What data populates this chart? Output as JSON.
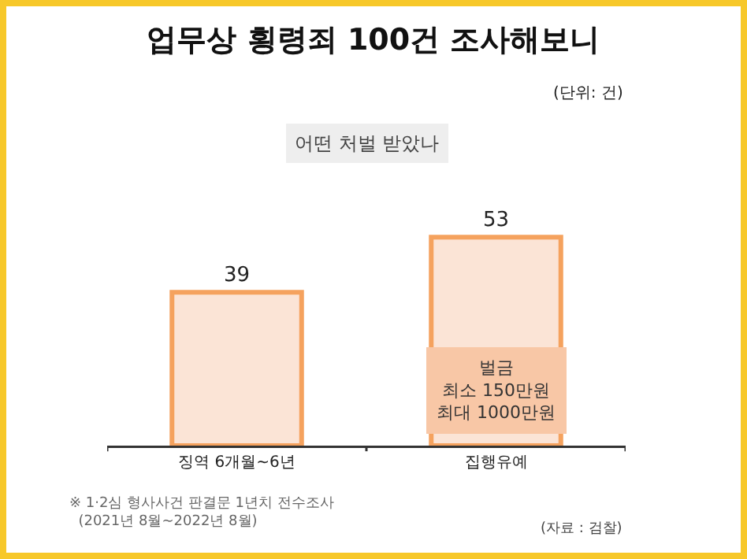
{
  "chart_data": {
    "type": "bar",
    "title": "업무상 횡령죄 100건 조사해보니",
    "subtitle": "어떤 처벌 받았나",
    "categories": [
      "징역 6개월~6년",
      "집행유예"
    ],
    "values": [
      39,
      53
    ],
    "color": "#fbe4d6",
    "data_labels": true,
    "annotations": [
      "(단위: 건)",
      "벌금\n최소 150만원\n최대 1000만원",
      "※ 1·2심 형사사건 판결문 1년치 전수조사\n  (2021년 8월~2022년 8월)",
      "(자료 : 검찰)"
    ]
  }
}
